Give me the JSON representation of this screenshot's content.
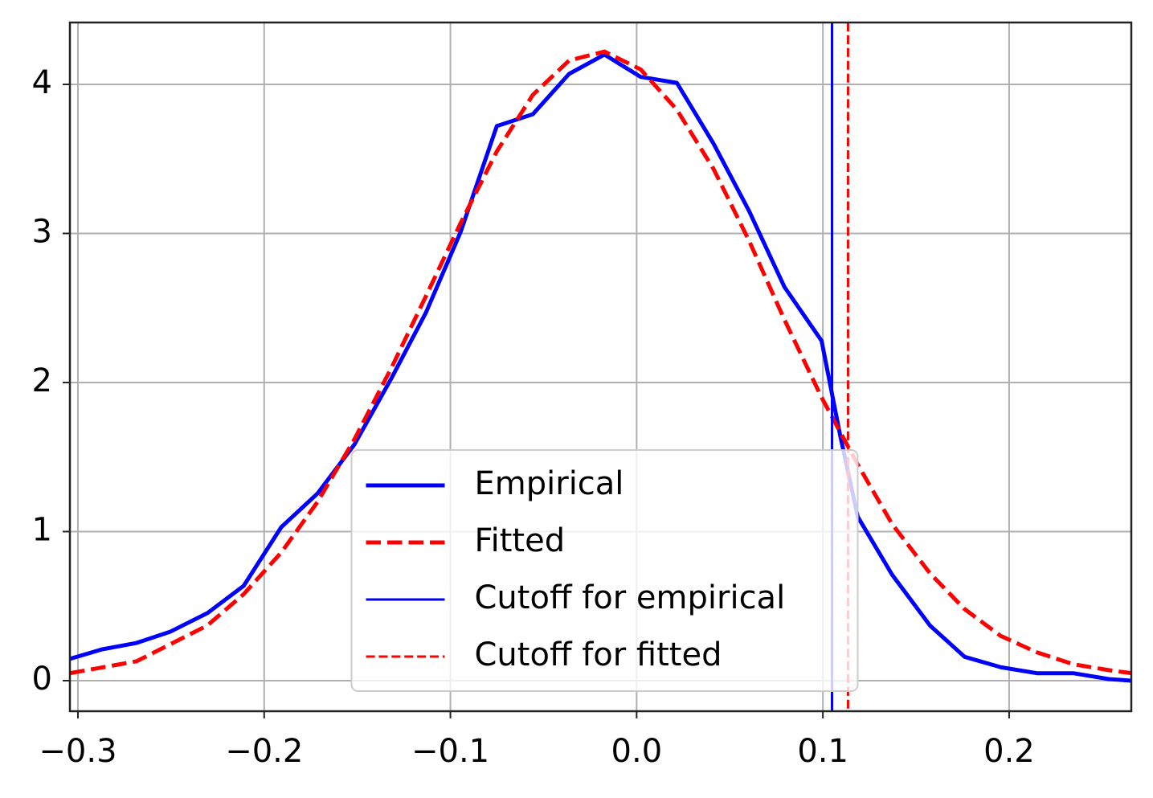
{
  "chart_data": {
    "type": "line",
    "xlim": [
      -0.3043,
      0.2656
    ],
    "ylim": [
      -0.205,
      4.415
    ],
    "xticks": [
      {
        "value": -0.3,
        "label": "−0.3"
      },
      {
        "value": -0.2,
        "label": "−0.2"
      },
      {
        "value": -0.1,
        "label": "−0.1"
      },
      {
        "value": 0,
        "label": "0.0"
      },
      0.1,
      0.2
    ],
    "yticks": [
      0,
      1,
      2,
      3,
      4
    ],
    "grid": true,
    "legend": "lower center",
    "series": [
      {
        "name": "Empirical",
        "color": "#0000ff",
        "linestyle": "solid",
        "linewidth": 5,
        "x": [
          -0.3043,
          -0.287,
          -0.2685,
          -0.2503,
          -0.2305,
          -0.211,
          -0.1908,
          -0.1713,
          -0.1515,
          -0.1316,
          -0.1131,
          -0.0945,
          -0.0751,
          -0.0557,
          -0.0363,
          -0.0173,
          0.0022,
          0.0216,
          0.0414,
          0.0604,
          0.0794,
          0.0993,
          0.1092,
          0.1187,
          0.1372,
          0.1575,
          0.1761,
          0.1955,
          0.2149,
          0.2344,
          0.2538,
          0.2656
        ],
        "values": [
          0.146,
          0.21,
          0.253,
          0.329,
          0.453,
          0.636,
          1.03,
          1.256,
          1.585,
          2.03,
          2.47,
          3.01,
          3.72,
          3.8,
          4.07,
          4.2,
          4.05,
          4.01,
          3.6,
          3.15,
          2.64,
          2.28,
          1.65,
          1.1,
          0.71,
          0.37,
          0.16,
          0.09,
          0.05,
          0.05,
          0.01,
          0.0
        ]
      },
      {
        "name": "Fitted",
        "color": "#ff0000",
        "linestyle": "dashed",
        "linewidth": 5,
        "x": [
          -0.3043,
          -0.2685,
          -0.2305,
          -0.211,
          -0.1908,
          -0.1713,
          -0.1515,
          -0.1316,
          -0.1131,
          -0.0945,
          -0.0751,
          -0.0557,
          -0.0363,
          -0.0173,
          0.0022,
          0.0216,
          0.0414,
          0.0604,
          0.0794,
          0.0993,
          0.1187,
          0.1372,
          0.1575,
          0.1761,
          0.1955,
          0.2149,
          0.2344,
          0.2538,
          0.2656
        ],
        "values": [
          0.05,
          0.13,
          0.37,
          0.58,
          0.86,
          1.2,
          1.62,
          2.1,
          2.58,
          3.07,
          3.55,
          3.93,
          4.16,
          4.22,
          4.1,
          3.83,
          3.43,
          2.95,
          2.42,
          1.9,
          1.45,
          1.05,
          0.72,
          0.48,
          0.3,
          0.19,
          0.11,
          0.07,
          0.05
        ]
      }
    ],
    "cutoffs": [
      {
        "name": "Cutoff for empirical",
        "color": "#0000ff",
        "linestyle": "solid",
        "linewidth": 3,
        "x": 0.1049
      },
      {
        "name": "Cutoff for fitted",
        "color": "#ff0000",
        "linestyle": "dashed",
        "linewidth": 3,
        "x": 0.1135
      }
    ]
  }
}
